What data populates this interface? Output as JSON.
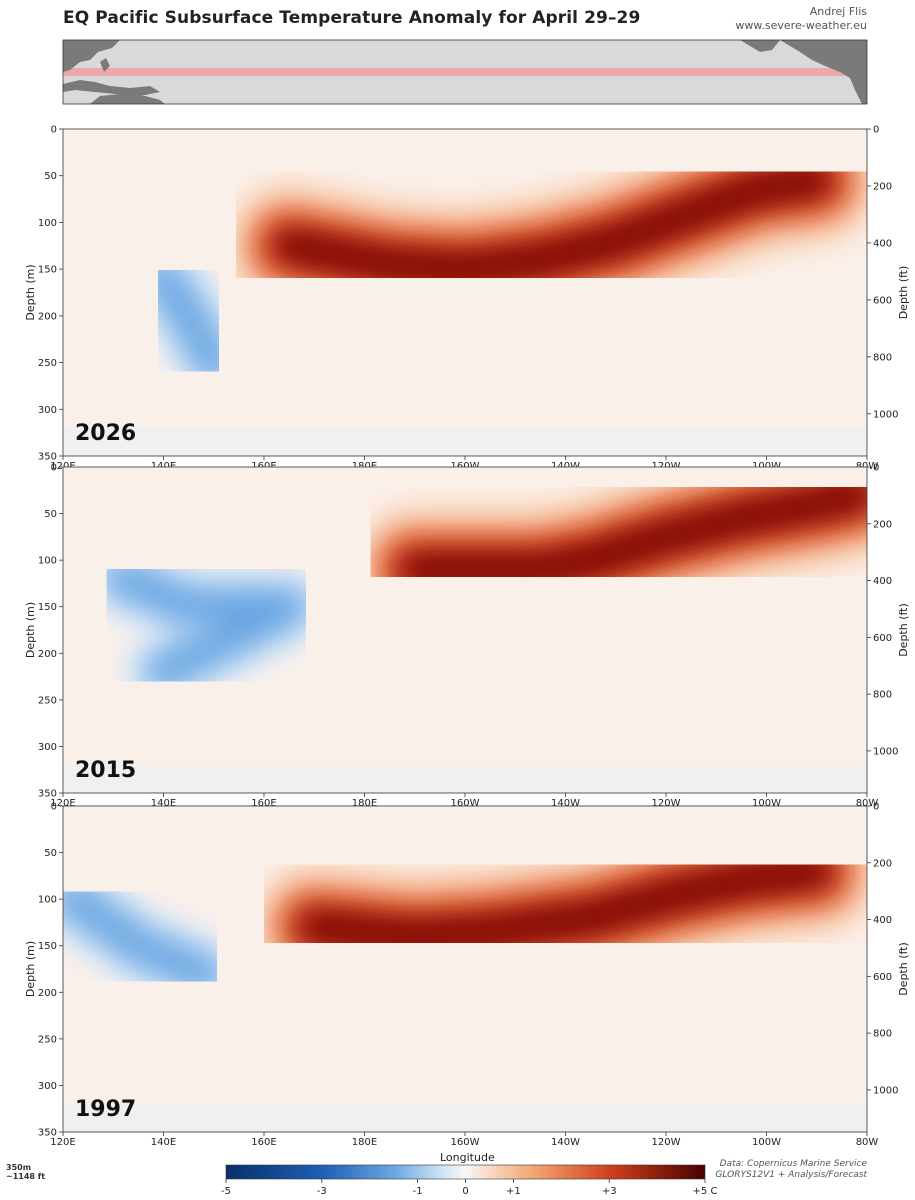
{
  "header": {
    "title": "EQ Pacific Subsurface Temperature Anomaly for April 29–29",
    "author": "Andrej Flis",
    "site": "www.severe-weather.eu"
  },
  "footer": {
    "source_line1": "Data: Copernicus Marine Service",
    "source_line2": "GLORYS12V1 + Analysis/Forecast",
    "depth_note_line1": "350m",
    "depth_note_line2": "~1148 ft",
    "x_axis_title": "Longitude"
  },
  "colors": {
    "cold_max": "#08306b",
    "cold_mid": "#4a90d9",
    "neutral": "#f7f7f7",
    "warm_mid": "#e8643a",
    "warm_max": "#5c0000",
    "map_land": "#7a7a7a",
    "map_ocean": "#d9d9d9",
    "map_band": "#f0a0a0"
  },
  "chart_data": [
    {
      "type": "heatmap",
      "label": "2026",
      "x_ticks": [
        "120E",
        "140E",
        "160E",
        "180E",
        "160W",
        "140W",
        "120W",
        "100W",
        "80W"
      ],
      "y_ticks_left": [
        "0",
        "50",
        "100",
        "150",
        "200",
        "250",
        "300",
        "350"
      ],
      "y_ticks_right": [
        "0",
        "200",
        "400",
        "600",
        "800",
        "1000"
      ],
      "ylabel_left": "Depth (m)",
      "ylabel_right": "Depth (ft)",
      "xlim": [
        120,
        280
      ],
      "ylim": [
        350,
        0
      ],
      "warm_core": [
        [
          165,
          125
        ],
        [
          185,
          145
        ],
        [
          200,
          150
        ],
        [
          215,
          140
        ],
        [
          230,
          120
        ],
        [
          245,
          90
        ],
        [
          258,
          65
        ],
        [
          270,
          55
        ]
      ],
      "cold_core": [
        [
          140,
          160
        ],
        [
          145,
          200
        ],
        [
          150,
          250
        ]
      ]
    },
    {
      "type": "heatmap",
      "label": "2015",
      "x_ticks": [
        "120E",
        "140E",
        "160E",
        "180E",
        "160W",
        "140W",
        "120W",
        "100W",
        "80W"
      ],
      "y_ticks_left": [
        "0",
        "50",
        "100",
        "150",
        "200",
        "250",
        "300",
        "350"
      ],
      "y_ticks_right": [
        "0",
        "200",
        "400",
        "600",
        "800",
        "1000"
      ],
      "ylabel_left": "Depth (m)",
      "ylabel_right": "Depth (ft)",
      "xlim": [
        120,
        280
      ],
      "ylim": [
        350,
        0
      ],
      "warm_core": [
        [
          190,
          110
        ],
        [
          215,
          110
        ],
        [
          225,
          100
        ],
        [
          240,
          75
        ],
        [
          255,
          55
        ],
        [
          270,
          40
        ],
        [
          278,
          30
        ]
      ],
      "cold_core": [
        [
          132,
          120
        ],
        [
          145,
          150
        ],
        [
          165,
          150
        ],
        [
          140,
          220
        ]
      ]
    },
    {
      "type": "heatmap",
      "label": "1997",
      "x_ticks": [
        "120E",
        "140E",
        "160E",
        "180E",
        "160W",
        "140W",
        "120W",
        "100W",
        "80W"
      ],
      "y_ticks_left": [
        "0",
        "50",
        "100",
        "150",
        "200",
        "250",
        "300",
        "350"
      ],
      "y_ticks_right": [
        "0",
        "200",
        "400",
        "600",
        "800",
        "1000"
      ],
      "ylabel_left": "Depth (m)",
      "ylabel_right": "Depth (ft)",
      "xlim": [
        120,
        280
      ],
      "ylim": [
        350,
        0
      ],
      "warm_core": [
        [
          170,
          130
        ],
        [
          190,
          140
        ],
        [
          205,
          135
        ],
        [
          225,
          120
        ],
        [
          242,
          95
        ],
        [
          255,
          80
        ],
        [
          270,
          70
        ]
      ],
      "cold_core": [
        [
          122,
          100
        ],
        [
          135,
          150
        ],
        [
          148,
          180
        ]
      ]
    }
  ],
  "colorbar": {
    "labels": [
      "-5",
      "-3",
      "-1",
      "0",
      "+1",
      "+3",
      "+5 C"
    ],
    "values": [
      -5,
      -3,
      -1,
      0,
      1,
      3,
      5
    ],
    "range": [
      -5,
      5
    ]
  }
}
